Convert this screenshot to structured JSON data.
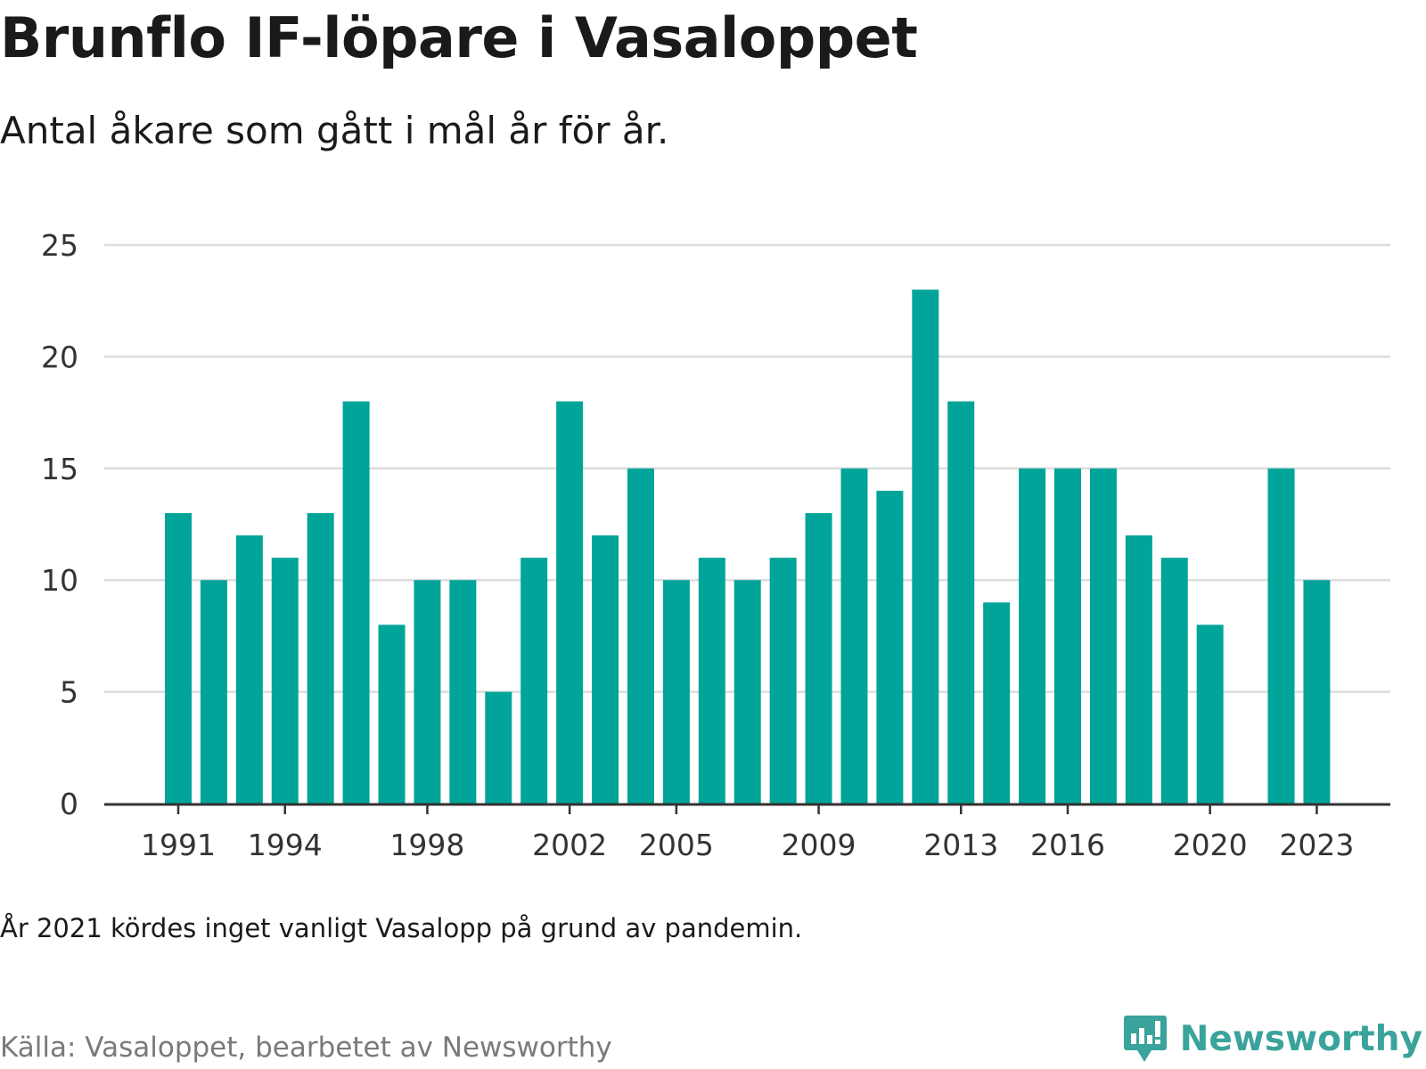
{
  "header": {
    "title": "Brunflo IF-löpare i Vasaloppet",
    "subtitle": "Antal åkare som gått i mål år för år."
  },
  "footer": {
    "note": "År 2021 kördes inget vanligt Vasalopp på grund av pandemin.",
    "source": "Källa: Vasaloppet, bearbetet av Newsworthy",
    "brand": "Newsworthy",
    "brand_icon": "newsworthy-logo-icon"
  },
  "colors": {
    "bar": "#00a499",
    "grid": "#dddddd",
    "axis": "#333333",
    "brand": "#3aa39b"
  },
  "chart_data": {
    "type": "bar",
    "title": "Brunflo IF-löpare i Vasaloppet",
    "subtitle": "Antal åkare som gått i mål år för år.",
    "xlabel": "",
    "ylabel": "",
    "ylim": [
      0,
      25
    ],
    "yticks": [
      0,
      5,
      10,
      15,
      20,
      25
    ],
    "xticks": [
      1991,
      1994,
      1998,
      2002,
      2005,
      2009,
      2013,
      2016,
      2020,
      2023
    ],
    "grid": true,
    "legend": "none",
    "categories": [
      1991,
      1992,
      1993,
      1994,
      1995,
      1996,
      1997,
      1998,
      1999,
      2000,
      2001,
      2002,
      2003,
      2004,
      2005,
      2006,
      2007,
      2008,
      2009,
      2010,
      2011,
      2012,
      2013,
      2014,
      2015,
      2016,
      2017,
      2018,
      2019,
      2020,
      2021,
      2022,
      2023
    ],
    "values": [
      13,
      10,
      12,
      11,
      13,
      18,
      8,
      10,
      10,
      5,
      11,
      18,
      12,
      15,
      10,
      11,
      10,
      11,
      13,
      15,
      14,
      23,
      18,
      9,
      15,
      15,
      15,
      12,
      11,
      8,
      null,
      15,
      10
    ]
  }
}
